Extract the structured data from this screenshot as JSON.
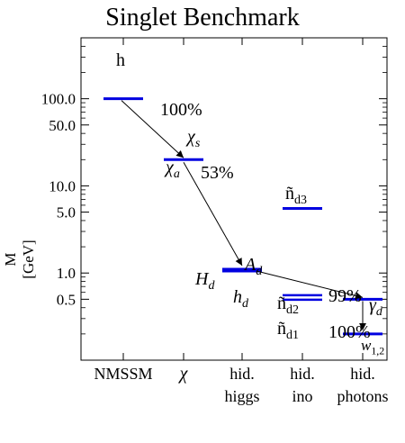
{
  "title": "Singlet Benchmark",
  "y_axis_label": "M [GeV]",
  "y_ticks": [
    {
      "label": "100.0",
      "value": 100
    },
    {
      "label": "50.0",
      "value": 50
    },
    {
      "label": "10.0",
      "value": 10
    },
    {
      "label": "5.0",
      "value": 5
    },
    {
      "label": "1.0",
      "value": 1
    },
    {
      "label": "0.5",
      "value": 0.5
    }
  ],
  "y_range": [
    0.1,
    500
  ],
  "columns": [
    {
      "label": [
        "NMSSM"
      ]
    },
    {
      "label": [
        "χ"
      ]
    },
    {
      "label": [
        "hid.",
        "higgs"
      ]
    },
    {
      "label": [
        "hid.",
        "ino"
      ]
    },
    {
      "label": [
        "hid.",
        "photons"
      ]
    }
  ],
  "levels": [
    {
      "column": 0,
      "mass": 100,
      "labels": [
        {
          "text": "h",
          "pos": "above"
        }
      ]
    },
    {
      "column": 1,
      "mass": 20,
      "labels": [
        {
          "text": "χs",
          "pos": "above-right"
        },
        {
          "text": "χa",
          "pos": "below-left"
        }
      ]
    },
    {
      "column": 2,
      "mass": 1.08,
      "thick": true,
      "labels": [
        {
          "text": "Ad",
          "pos": "above-right"
        },
        {
          "text": "Hd",
          "pos": "left"
        },
        {
          "text": "hd",
          "pos": "below"
        }
      ]
    },
    {
      "column": 3,
      "mass": 5.5,
      "labels": [
        {
          "text": "ñd3",
          "pos": "above"
        }
      ]
    },
    {
      "column": 3,
      "mass": 0.53,
      "double": true,
      "labels": [
        {
          "text": "ñd2",
          "pos": "above"
        },
        {
          "text": "ñd1",
          "pos": "below"
        }
      ]
    },
    {
      "column": 4,
      "mass": 0.5,
      "labels": [
        {
          "text": "γd",
          "pos": "right"
        }
      ]
    },
    {
      "column": 4,
      "mass": 0.2,
      "labels": [
        {
          "text": "w1,2",
          "pos": "above-right"
        }
      ]
    }
  ],
  "decays": [
    {
      "from": 0,
      "to": 1,
      "branching": "100%"
    },
    {
      "from": 1,
      "to": 2,
      "branching": "53%"
    },
    {
      "from": 2,
      "to": 5,
      "branching": "99%"
    },
    {
      "from": 5,
      "to": 6,
      "branching": "100%"
    }
  ],
  "colors": {
    "level": "#0000e0",
    "axis": "#000000",
    "arrow": "#000000"
  }
}
